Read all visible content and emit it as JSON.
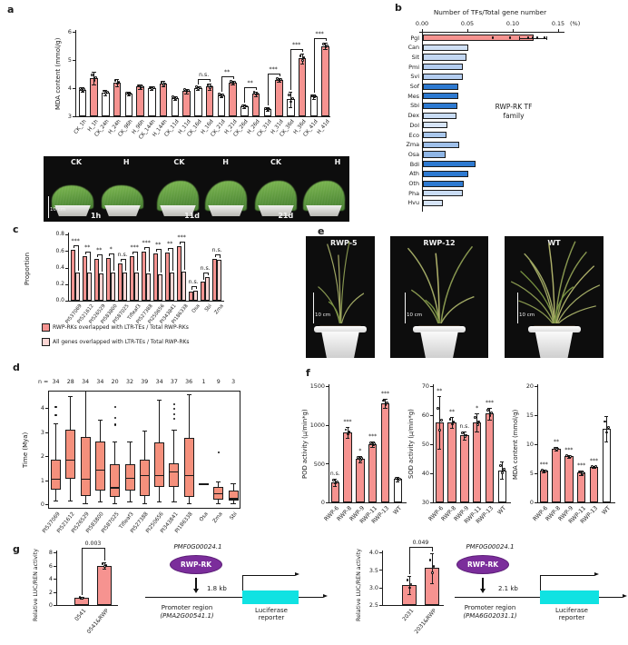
{
  "colors": {
    "salmon": "#f69390",
    "light_pink": "#fbd6d4",
    "white_bar": "#ffffff",
    "box_fill": "#f5907c",
    "cyan": "#10e2e2",
    "purple": "#7b2d9b",
    "blue_dark": "#2e7ad1"
  },
  "panel_a": {
    "label": "a",
    "chart": {
      "type": "bar",
      "ylabel": "MDA content (mmol/g)",
      "ylim": [
        3,
        6
      ],
      "yticks": [
        3,
        4,
        5,
        6
      ],
      "categories": [
        "CK_1h",
        "H_1h",
        "CK_24h",
        "H_24h",
        "CK_96h",
        "H_96h",
        "CK_144h",
        "H_144h",
        "CK_11d",
        "H_11d",
        "CK_16d",
        "H_16d",
        "CK_21d",
        "H_21d",
        "CK_26d",
        "H_26d",
        "CK_31d",
        "H_31d",
        "CK_36d",
        "H_36d",
        "CK_41d",
        "H_41d"
      ],
      "values": [
        3.95,
        4.35,
        3.85,
        4.2,
        3.8,
        4.05,
        4.0,
        4.15,
        3.65,
        3.9,
        4.0,
        4.05,
        3.75,
        4.2,
        3.35,
        3.8,
        3.25,
        4.3,
        3.6,
        5.05,
        3.7,
        5.5
      ],
      "errors": [
        0.08,
        0.22,
        0.1,
        0.12,
        0.06,
        0.08,
        0.06,
        0.1,
        0.07,
        0.08,
        0.07,
        0.12,
        0.06,
        0.07,
        0.06,
        0.08,
        0.06,
        0.07,
        0.28,
        0.18,
        0.08,
        0.12
      ],
      "significance": [
        {
          "at": "16d",
          "label": "n.s."
        },
        {
          "at": "21d",
          "label": "**"
        },
        {
          "at": "26d",
          "label": "**"
        },
        {
          "at": "31d",
          "label": "***"
        },
        {
          "at": "36d",
          "label": "***"
        },
        {
          "at": "41d",
          "label": "***"
        }
      ]
    },
    "photos": {
      "groups": [
        {
          "labels": [
            "CK",
            "H"
          ],
          "time": "1h"
        },
        {
          "labels": [
            "CK",
            "H"
          ],
          "time": "11d"
        },
        {
          "labels": [
            "CK",
            "H"
          ],
          "time": "21d"
        }
      ],
      "scale_bar": "10 cm"
    }
  },
  "panel_b": {
    "label": "b",
    "chart": {
      "type": "hbar",
      "title": "Number of TFs/Total gene number",
      "xticks": [
        "0.00",
        "0.05",
        "0.10",
        "0.15"
      ],
      "xunit": "(%)",
      "annotation_line1": "RWP-RK TF",
      "annotation_line2": "family",
      "species": [
        "Pgl",
        "Can",
        "Sit",
        "Pmi",
        "Svi",
        "Sof",
        "Mes",
        "Sbi",
        "Dex",
        "Dol",
        "Eco",
        "Zma",
        "Osa",
        "Bdi",
        "Ath",
        "Oth",
        "Pha",
        "Hvu"
      ],
      "values": [
        0.122,
        0.05,
        0.048,
        0.044,
        0.044,
        0.039,
        0.039,
        0.038,
        0.037,
        0.027,
        0.026,
        0.04,
        0.025,
        0.058,
        0.05,
        0.045,
        0.044,
        0.022
      ],
      "bar_colors": [
        "#f69390",
        "#cfe0f5",
        "#c3d7f2",
        "#b4cdf0",
        "#b4cdf0",
        "#2e7ad1",
        "#2e7ad1",
        "#2e7ad1",
        "#c9dcf4",
        "#d6e4f7",
        "#a9c7ec",
        "#9fc0ea",
        "#8fb6e6",
        "#2e7ad1",
        "#2e7ad1",
        "#2e7ad1",
        "#c9dcf4",
        "#d6e4f7"
      ],
      "pgl_error": [
        0.107,
        0.137
      ],
      "pgl_dots": [
        0.078,
        0.097,
        0.117,
        0.122,
        0.127,
        0.135
      ]
    }
  },
  "panel_c": {
    "label": "c",
    "chart": {
      "type": "grouped-bar",
      "ylabel": "Proportion",
      "ylim": [
        0,
        0.8
      ],
      "ytick_labels": [
        "0.0",
        "0.2",
        "0.4",
        "0.6",
        "0.8"
      ],
      "categories": [
        "PI537069",
        "PI521612",
        "PI526529",
        "PI583800",
        "PI587025",
        "Tifleaf3",
        "PI527388",
        "PI250656",
        "PI343841",
        "PI186338",
        "Osa",
        "Sbi",
        "Zma"
      ],
      "series": [
        {
          "name": "RWP-RKs overlapped with LTR-TEs / Total RWP-RKs",
          "values": [
            0.61,
            0.54,
            0.5,
            0.52,
            0.45,
            0.54,
            0.59,
            0.57,
            0.58,
            0.66,
            0.11,
            0.23,
            0.5
          ]
        },
        {
          "name": "All genes overlapped with LTR-TEs / Total RWP-RKs",
          "values": [
            0.34,
            0.34,
            0.33,
            0.34,
            0.34,
            0.34,
            0.33,
            0.32,
            0.34,
            0.35,
            0.12,
            0.29,
            0.49
          ]
        }
      ],
      "significance": [
        "***",
        "**",
        "**",
        "*",
        "n.s.",
        "***",
        "***",
        "**",
        "**",
        "***",
        "n.s.",
        "n.s.",
        "n.s."
      ]
    }
  },
  "panel_d": {
    "label": "d",
    "chart": {
      "type": "boxplot",
      "ylabel": "Time (Mya)",
      "yticks": [
        0,
        1,
        2,
        3,
        4
      ],
      "n_prefix": "n =",
      "categories": [
        "PI537069",
        "PI521612",
        "PI526529",
        "PI583800",
        "PI587025",
        "Tifleaf3",
        "PI527388",
        "PI250656",
        "PI343841",
        "PI186338",
        "Osa",
        "Zma",
        "Sbi"
      ],
      "n": [
        34,
        28,
        34,
        34,
        20,
        32,
        39,
        34,
        37,
        36,
        1,
        9,
        3
      ],
      "boxes": [
        {
          "lo": 0.15,
          "q1": 0.6,
          "med": 1.05,
          "q3": 1.85,
          "hi": 3.35,
          "out": [
            3.7,
            4.05
          ]
        },
        {
          "lo": 0.15,
          "q1": 1.05,
          "med": 1.85,
          "q3": 3.1,
          "hi": 4.5,
          "out": []
        },
        {
          "lo": 0.05,
          "q1": 0.35,
          "med": 1.05,
          "q3": 2.8,
          "hi": 4.7,
          "out": []
        },
        {
          "lo": 0.1,
          "q1": 0.55,
          "med": 1.45,
          "q3": 2.6,
          "hi": 3.5,
          "out": []
        },
        {
          "lo": 0.05,
          "q1": 0.3,
          "med": 0.7,
          "q3": 1.65,
          "hi": 2.6,
          "out": [
            3.3,
            3.6,
            4.05
          ]
        },
        {
          "lo": 0.1,
          "q1": 0.55,
          "med": 1.1,
          "q3": 1.65,
          "hi": 2.6,
          "out": []
        },
        {
          "lo": 0.05,
          "q1": 0.35,
          "med": 1.2,
          "q3": 1.85,
          "hi": 3.05,
          "out": []
        },
        {
          "lo": 0.1,
          "q1": 0.7,
          "med": 1.2,
          "q3": 2.55,
          "hi": 4.35,
          "out": []
        },
        {
          "lo": 0.1,
          "q1": 0.7,
          "med": 1.35,
          "q3": 1.7,
          "hi": 3.1,
          "out": [
            3.55,
            3.75,
            3.95,
            4.15
          ]
        },
        {
          "lo": 0.05,
          "q1": 0.3,
          "med": 1.2,
          "q3": 2.75,
          "hi": 4.55,
          "out": []
        },
        {
          "lo": 0.85,
          "q1": 0.85,
          "med": 0.85,
          "q3": 0.85,
          "hi": 0.85,
          "out": []
        },
        {
          "lo": 0.05,
          "q1": 0.2,
          "med": 0.45,
          "q3": 0.7,
          "hi": 0.95,
          "out": [
            2.15
          ]
        },
        {
          "lo": 0.05,
          "q1": 0.15,
          "med": 0.25,
          "q3": 0.55,
          "hi": 0.85,
          "out": []
        }
      ]
    }
  },
  "panel_e": {
    "label": "e",
    "photos": [
      {
        "name": "RWP-5",
        "scale_bar": "10 cm"
      },
      {
        "name": "RWP-12",
        "scale_bar": "10 cm"
      },
      {
        "name": "WT",
        "scale_bar": "10 cm"
      }
    ]
  },
  "panel_f": {
    "label": "f",
    "categories": [
      "RWP-6",
      "RWP-8",
      "RWP-9",
      "RWP-11",
      "RWP-13",
      "WT"
    ],
    "charts": [
      {
        "ylabel": "POD activity (μ/min*g)",
        "ylim": [
          0,
          1500
        ],
        "yticks": [
          0,
          500,
          1000,
          1500
        ],
        "values": [
          260,
          900,
          560,
          750,
          1280,
          300
        ],
        "errors": [
          50,
          70,
          40,
          40,
          60,
          25
        ],
        "sig": [
          "n.s.",
          "***",
          "*",
          "***",
          "***",
          null
        ]
      },
      {
        "ylabel": "SOD activity (μ/min*g)",
        "ylim": [
          30,
          70
        ],
        "yticks": [
          30,
          40,
          50,
          60,
          70
        ],
        "values": [
          57.5,
          57.5,
          53,
          57.5,
          60.5,
          41
        ],
        "errors": [
          9,
          2,
          1.5,
          3,
          2,
          3
        ],
        "sig": [
          "**",
          "**",
          "n.s.",
          "*",
          "***",
          null
        ]
      },
      {
        "ylabel": "MDA content (mmol/g)",
        "ylim": [
          0,
          20
        ],
        "yticks": [
          0,
          5,
          10,
          15,
          20
        ],
        "values": [
          5.4,
          9.2,
          7.9,
          5.1,
          6.1,
          12.7
        ],
        "errors": [
          0.3,
          0.3,
          0.2,
          0.4,
          0.2,
          2.2
        ],
        "sig": [
          "***",
          "**",
          "***",
          "***",
          "***",
          null
        ]
      }
    ]
  },
  "panel_g": {
    "label": "g",
    "left": {
      "chart": {
        "ylabel": "Relative LUC/REN activity",
        "ylim": [
          0,
          8
        ],
        "yticks": [
          "0",
          "2",
          "4",
          "6",
          "8"
        ],
        "categories": [
          "0541",
          "0541&RWP"
        ],
        "values": [
          1.1,
          6.0
        ],
        "errors": [
          0.15,
          0.5
        ],
        "p_value": "0.003"
      },
      "diagram": {
        "gene": "PMF0G00024.1",
        "tf": "RWP-RK",
        "distance": "1.8 kb",
        "promoter_line1": "Promoter region",
        "promoter_line2": "(PMA2G00541.1)",
        "reporter": "Luciferase reporter"
      }
    },
    "right": {
      "chart": {
        "ylabel": "Relative LUC/REN activity",
        "ylim": [
          2.5,
          4.0
        ],
        "yticks": [
          "2.5",
          "3.0",
          "3.5",
          "4.0"
        ],
        "categories": [
          "2031",
          "2031&RWP"
        ],
        "values": [
          3.07,
          3.55
        ],
        "errors": [
          0.27,
          0.42
        ],
        "p_value": "0.049"
      },
      "diagram": {
        "gene": "PMF0G00024.1",
        "tf": "RWP-RK",
        "distance": "2.1 kb",
        "promoter_line1": "Promoter region",
        "promoter_line2": "(PMA6G02031.1)",
        "reporter": "Luciferase reporter"
      }
    }
  }
}
